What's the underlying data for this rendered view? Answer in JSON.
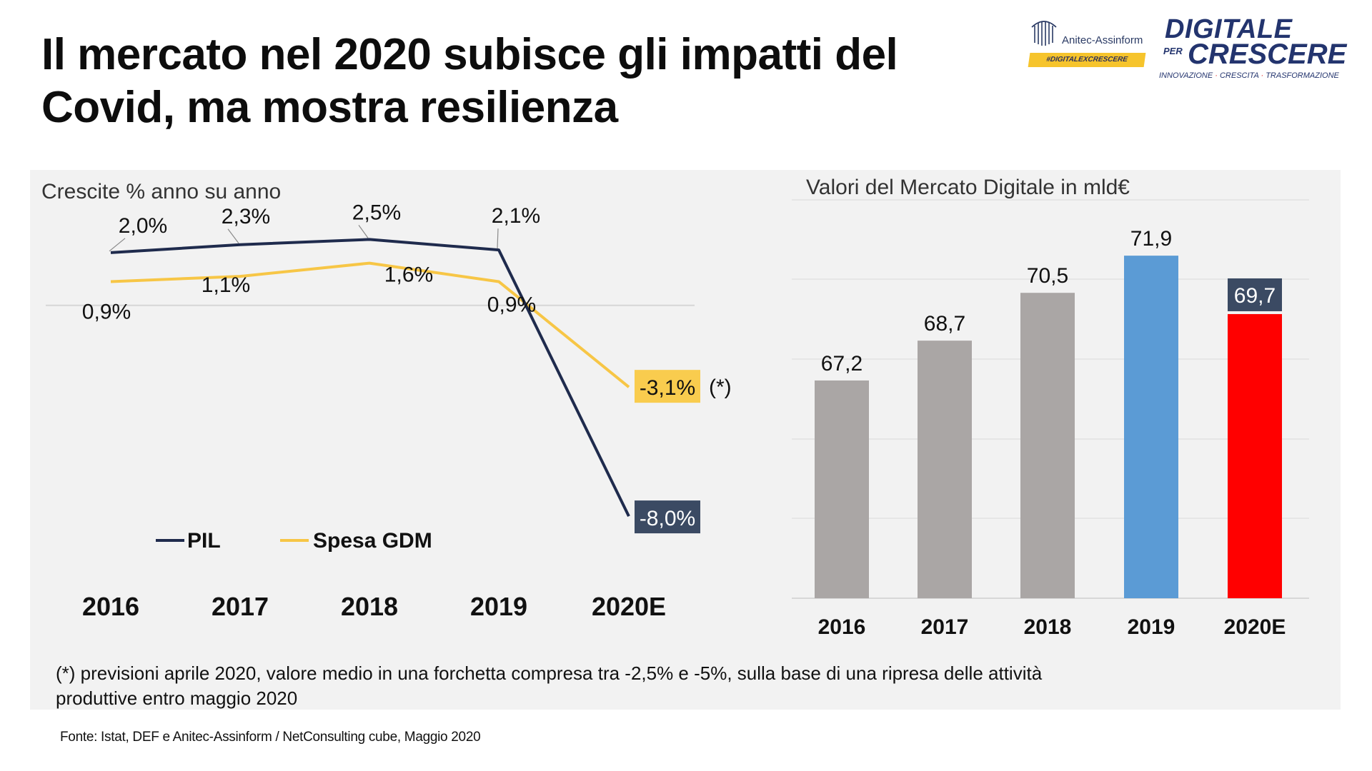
{
  "slide": {
    "title": "Il mercato nel 2020 subisce gli impatti del Covid, ma mostra resilienza",
    "footnote": "(*) previsioni aprile 2020, valore medio in una forchetta compresa tra -2,5% e -5%, sulla base di una ripresa delle attività produttive entro maggio 2020",
    "source": "Fonte: Istat, DEF e Anitec-Assinform / NetConsulting cube, Maggio  2020"
  },
  "logos": {
    "anitec_name": "Anitec-Assinform",
    "anitec_tag": "#DIGITALEXCRESCERE",
    "dpc_line1": "DIGITALE",
    "dpc_per": "PER",
    "dpc_line2": "CRESCERE",
    "dpc_tagline": [
      "INNOVAZIONE",
      "CRESCITA",
      "TRASFORMAZIONE"
    ]
  },
  "colors": {
    "pil": "#1f2b4d",
    "gdm": "#f7c646",
    "bar_grey": "#aaa6a5",
    "bar_blue": "#5b9bd5",
    "bar_red": "#ff0000",
    "label_dark": "#3b4a63",
    "label_yellow": "#f9cc4e"
  },
  "chart_data": [
    {
      "type": "line",
      "title": "Crescite % anno su anno",
      "categories": [
        "2016",
        "2017",
        "2018",
        "2019",
        "2020E"
      ],
      "series": [
        {
          "name": "PIL",
          "values": [
            2.0,
            2.3,
            2.5,
            2.1,
            -8.0
          ],
          "labels": [
            "2,0%",
            "2,3%",
            "2,5%",
            "2,1%",
            "-8,0%"
          ]
        },
        {
          "name": "Spesa GDM",
          "values": [
            0.9,
            1.1,
            1.6,
            0.9,
            -3.1
          ],
          "labels": [
            "0,9%",
            "1,1%",
            "1,6%",
            "0,9%",
            "-3,1%"
          ]
        }
      ],
      "annotation": "(*)",
      "ylim": [
        -9,
        4
      ],
      "legend": "bottom-left"
    },
    {
      "type": "bar",
      "title": "Valori del Mercato Digitale in mld€",
      "categories": [
        "2016",
        "2017",
        "2018",
        "2019",
        "2020E"
      ],
      "values": [
        67.2,
        68.7,
        70.5,
        71.9,
        69.7
      ],
      "labels": [
        "67,2",
        "68,7",
        "70,5",
        "71,9",
        "69,7"
      ],
      "ylim": [
        59,
        74
      ],
      "grid": true
    }
  ]
}
